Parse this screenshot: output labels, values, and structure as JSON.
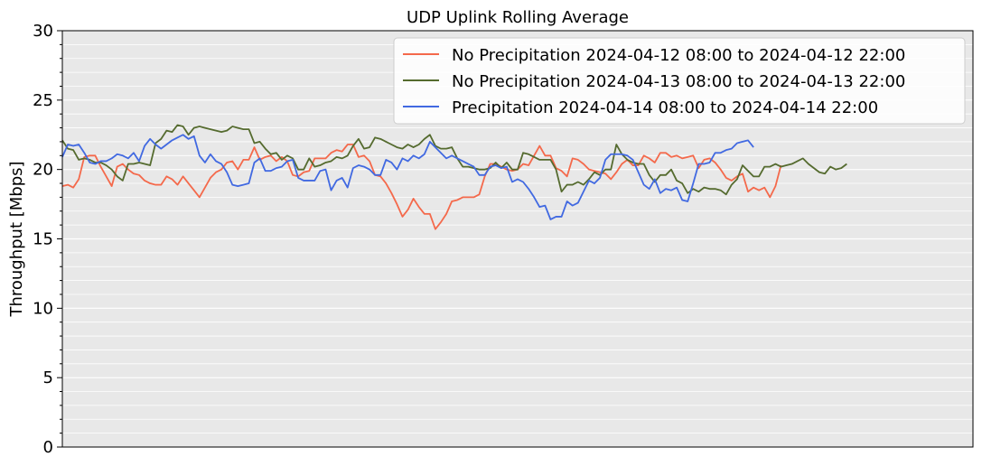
{
  "chart_data": {
    "type": "line",
    "title": "UDP Uplink Rolling Average",
    "xlabel": "",
    "ylabel": "Throughput [Mbps]",
    "ylim": [
      0,
      30
    ],
    "yticks": [
      0,
      5,
      10,
      15,
      20,
      25,
      30
    ],
    "xlim": [
      0,
      166
    ],
    "grid": "horizontal",
    "background": "#e8e8e8",
    "legend_position": "top-right",
    "series": [
      {
        "name": "No Precipitation 2024-04-12 08:00 to 2024-04-12 22:00",
        "color": "#f4694b",
        "values": [
          18.8,
          18.9,
          18.7,
          19.3,
          20.9,
          21.0,
          21.0,
          20.2,
          19.5,
          18.8,
          20.2,
          20.4,
          20.0,
          19.7,
          19.6,
          19.2,
          19.0,
          18.9,
          18.9,
          19.5,
          19.3,
          18.9,
          19.5,
          19.0,
          18.5,
          18.0,
          18.7,
          19.4,
          19.8,
          20.0,
          20.5,
          20.6,
          20.0,
          20.7,
          20.7,
          21.6,
          20.7,
          20.9,
          21.0,
          20.6,
          20.9,
          20.6,
          19.6,
          19.5,
          19.8,
          19.9,
          20.8,
          20.8,
          20.8,
          21.2,
          21.4,
          21.3,
          21.8,
          21.8,
          20.9,
          21.0,
          20.6,
          19.6,
          19.5,
          19.0,
          18.3,
          17.5,
          16.6,
          17.1,
          17.9,
          17.3,
          16.8,
          16.8,
          15.7,
          16.2,
          16.8,
          17.7,
          17.8,
          18.0,
          18.0,
          18.0,
          18.2,
          19.5,
          20.4,
          20.4,
          20.2,
          20.0,
          19.9,
          20.0,
          20.4,
          20.3,
          21.0,
          21.7,
          21.0,
          21.0,
          20.1,
          19.9,
          19.5,
          20.8,
          20.7,
          20.4,
          20.0,
          19.9,
          19.8,
          19.7,
          19.3,
          19.8,
          20.4,
          20.7,
          20.3,
          20.3,
          21.0,
          20.8,
          20.5,
          21.2,
          21.2,
          20.9,
          21.0,
          20.8,
          20.9,
          21.0,
          20.1,
          20.7,
          20.8,
          20.5,
          20.0,
          19.4,
          19.2,
          19.5,
          19.7,
          18.4,
          18.7,
          18.5,
          18.7,
          18.0,
          18.8,
          20.3
        ]
      },
      {
        "name": "No Precipitation 2024-04-13 08:00 to 2024-04-13 22:00",
        "color": "#556b2f",
        "values": [
          22.1,
          21.5,
          21.4,
          20.7,
          20.8,
          20.7,
          20.5,
          20.5,
          20.3,
          20.0,
          19.5,
          19.2,
          20.4,
          20.4,
          20.5,
          20.4,
          20.3,
          21.9,
          22.2,
          22.8,
          22.7,
          23.2,
          23.1,
          22.5,
          23.0,
          23.1,
          23.0,
          22.9,
          22.8,
          22.7,
          22.8,
          23.1,
          23.0,
          22.9,
          22.9,
          21.9,
          22.0,
          21.5,
          21.1,
          21.2,
          20.7,
          21.0,
          20.8,
          20.0,
          20.0,
          20.8,
          20.2,
          20.3,
          20.5,
          20.6,
          20.9,
          20.8,
          21.0,
          21.7,
          22.2,
          21.5,
          21.6,
          22.3,
          22.2,
          22.0,
          21.8,
          21.6,
          21.5,
          21.8,
          21.6,
          21.8,
          22.2,
          22.5,
          21.7,
          21.5,
          21.5,
          21.6,
          20.8,
          20.2,
          20.2,
          20.1,
          20.0,
          20.0,
          20.1,
          20.5,
          20.1,
          20.5,
          20.0,
          20.0,
          21.2,
          21.1,
          20.9,
          20.7,
          20.7,
          20.7,
          20.0,
          18.4,
          18.9,
          18.9,
          19.1,
          18.9,
          19.3,
          19.8,
          19.6,
          20.0,
          20.0,
          21.8,
          21.1,
          20.7,
          20.5,
          20.4,
          20.4,
          19.6,
          19.1,
          19.6,
          19.6,
          20.0,
          19.2,
          19.0,
          18.3,
          18.6,
          18.4,
          18.7,
          18.6,
          18.6,
          18.5,
          18.2,
          18.9,
          19.3,
          20.3,
          19.9,
          19.5,
          19.5,
          20.2,
          20.2,
          20.4,
          20.2,
          20.3,
          20.4,
          20.6,
          20.8,
          20.4,
          20.1,
          19.8,
          19.7,
          20.2,
          20.0,
          20.1,
          20.4
        ]
      },
      {
        "name": "Precipitation 2024-04-14 08:00 to 2024-04-14 22:00",
        "color": "#4169e1",
        "values": [
          20.9,
          21.8,
          21.7,
          21.8,
          21.2,
          20.5,
          20.4,
          20.6,
          20.6,
          20.8,
          21.1,
          21.0,
          20.8,
          21.2,
          20.6,
          21.7,
          22.2,
          21.8,
          21.5,
          21.8,
          22.1,
          22.3,
          22.5,
          22.2,
          22.4,
          21.0,
          20.5,
          21.1,
          20.6,
          20.4,
          19.8,
          18.9,
          18.8,
          18.9,
          19.0,
          20.5,
          20.8,
          19.9,
          19.9,
          20.1,
          20.2,
          20.6,
          20.7,
          19.4,
          19.2,
          19.2,
          19.2,
          19.9,
          20.0,
          18.5,
          19.2,
          19.4,
          18.7,
          20.1,
          20.3,
          20.2,
          20.0,
          19.6,
          19.6,
          20.7,
          20.5,
          20.0,
          20.8,
          20.6,
          21.0,
          20.8,
          21.1,
          22.0,
          21.6,
          21.2,
          20.8,
          21.0,
          20.8,
          20.6,
          20.4,
          20.2,
          19.6,
          19.6,
          20.2,
          20.3,
          20.1,
          20.2,
          19.1,
          19.3,
          19.1,
          18.6,
          18.0,
          17.3,
          17.4,
          16.4,
          16.6,
          16.6,
          17.7,
          17.4,
          17.6,
          18.4,
          19.2,
          19.0,
          19.4,
          20.7,
          21.1,
          21.1,
          21.1,
          21.0,
          20.7,
          19.8,
          18.9,
          18.6,
          19.3,
          18.3,
          18.6,
          18.5,
          18.7,
          17.8,
          17.7,
          19.0,
          20.4,
          20.4,
          20.5,
          21.2,
          21.2,
          21.4,
          21.5,
          21.9,
          22.0,
          22.1,
          21.6
        ]
      }
    ]
  }
}
